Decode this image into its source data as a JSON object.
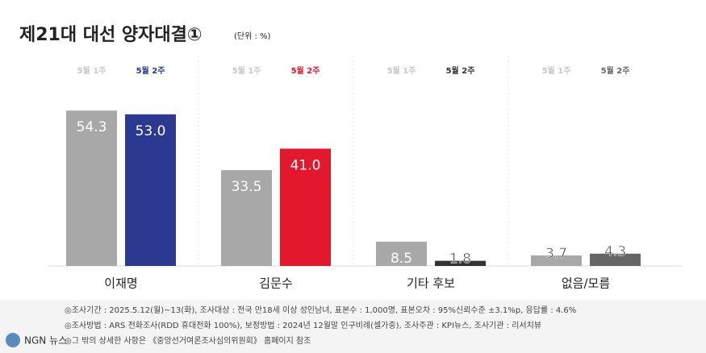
{
  "chart_data": {
    "type": "bar",
    "title": "제21대 대선 양자대결①",
    "subtitle": "(단위 : %)",
    "categories": [
      "이재명",
      "김문수",
      "기타 후보",
      "없음/모름"
    ],
    "series": [
      {
        "name": "5월 1주",
        "color": "#a8a8a8",
        "values": [
          54.3,
          33.5,
          8.5,
          3.7
        ]
      },
      {
        "name": "5월 2주",
        "colors": [
          "#2b3990",
          "#e3182d",
          "#333333",
          "#666666"
        ],
        "values": [
          53.0,
          41.0,
          1.8,
          4.3
        ],
        "value_labels": [
          "53.0",
          "41.0",
          "1.8",
          "4.3"
        ]
      }
    ],
    "notes": [
      "◎조사기간 : 2025.5.12(월)~13(화), 조사대상 : 전국 만18세 이상 성인남녀, 표본수 : 1,000명, 표본오차 : 95%신뢰수준 ±3.1%p, 응답률 : 4.6%",
      "◎조사방법 : ARS 전화조사(RDD 휴대전화 100%), 보정방법 : 2024년 12월말 인구비례(셀가중), 조사주관 : KPI뉴스, 조사기관 : 리서치뷰",
      "◎그 밖의 상세한 사항은 《중앙선거여론조사심의위원회》 홈페이지 참조"
    ],
    "watermark": "NGN 뉴스"
  }
}
